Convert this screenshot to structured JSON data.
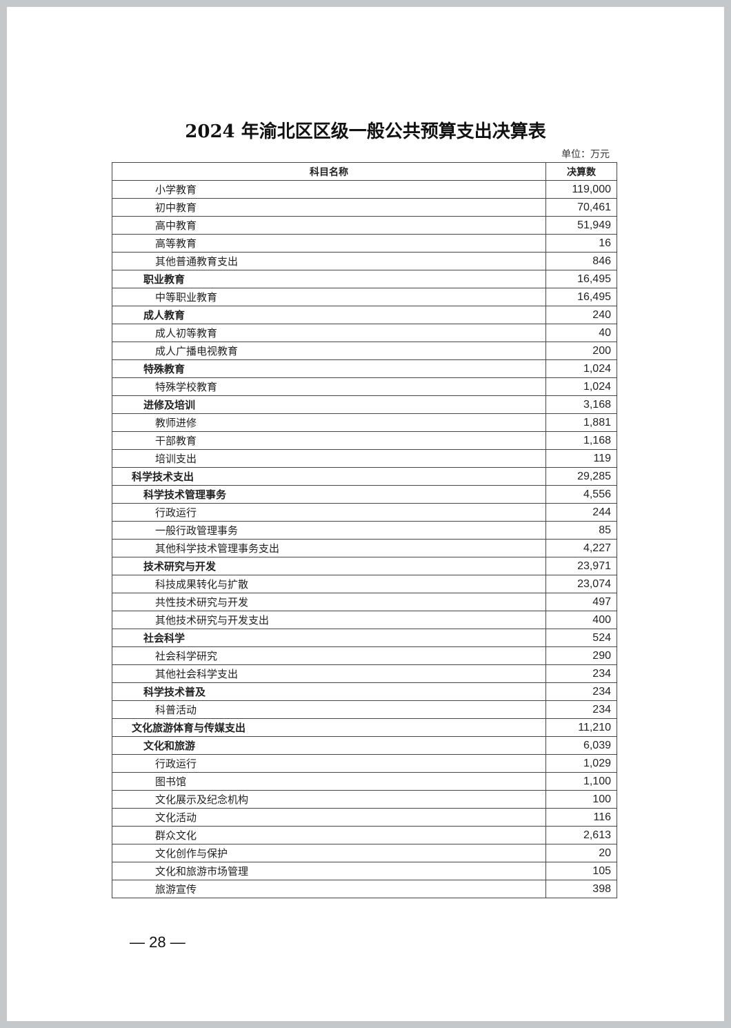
{
  "title": "2024 年渝北区区级一般公共预算支出决算表",
  "unit": "单位：万元",
  "table": {
    "headers": [
      "科目名称",
      "决算数"
    ],
    "rows": [
      {
        "name": "小学教育",
        "level": 3,
        "value": "119,000"
      },
      {
        "name": "初中教育",
        "level": 3,
        "value": "70,461"
      },
      {
        "name": "高中教育",
        "level": 3,
        "value": "51,949"
      },
      {
        "name": "高等教育",
        "level": 3,
        "value": "16"
      },
      {
        "name": "其他普通教育支出",
        "level": 3,
        "value": "846"
      },
      {
        "name": "职业教育",
        "level": 2,
        "value": "16,495"
      },
      {
        "name": "中等职业教育",
        "level": 3,
        "value": "16,495"
      },
      {
        "name": "成人教育",
        "level": 2,
        "value": "240"
      },
      {
        "name": "成人初等教育",
        "level": 3,
        "value": "40"
      },
      {
        "name": "成人广播电视教育",
        "level": 3,
        "value": "200"
      },
      {
        "name": "特殊教育",
        "level": 2,
        "value": "1,024"
      },
      {
        "name": "特殊学校教育",
        "level": 3,
        "value": "1,024"
      },
      {
        "name": "进修及培训",
        "level": 2,
        "value": "3,168"
      },
      {
        "name": "教师进修",
        "level": 3,
        "value": "1,881"
      },
      {
        "name": "干部教育",
        "level": 3,
        "value": "1,168"
      },
      {
        "name": "培训支出",
        "level": 3,
        "value": "119"
      },
      {
        "name": "科学技术支出",
        "level": 1,
        "value": "29,285"
      },
      {
        "name": "科学技术管理事务",
        "level": 2,
        "value": "4,556"
      },
      {
        "name": "行政运行",
        "level": 3,
        "value": "244"
      },
      {
        "name": "一般行政管理事务",
        "level": 3,
        "value": "85"
      },
      {
        "name": "其他科学技术管理事务支出",
        "level": 3,
        "value": "4,227"
      },
      {
        "name": "技术研究与开发",
        "level": 2,
        "value": "23,971"
      },
      {
        "name": "科技成果转化与扩散",
        "level": 3,
        "value": "23,074"
      },
      {
        "name": "共性技术研究与开发",
        "level": 3,
        "value": "497"
      },
      {
        "name": "其他技术研究与开发支出",
        "level": 3,
        "value": "400"
      },
      {
        "name": "社会科学",
        "level": 2,
        "value": "524"
      },
      {
        "name": "社会科学研究",
        "level": 3,
        "value": "290"
      },
      {
        "name": "其他社会科学支出",
        "level": 3,
        "value": "234"
      },
      {
        "name": "科学技术普及",
        "level": 2,
        "value": "234"
      },
      {
        "name": "科普活动",
        "level": 3,
        "value": "234"
      },
      {
        "name": "文化旅游体育与传媒支出",
        "level": 1,
        "value": "11,210"
      },
      {
        "name": "文化和旅游",
        "level": 2,
        "value": "6,039"
      },
      {
        "name": "行政运行",
        "level": 3,
        "value": "1,029"
      },
      {
        "name": "图书馆",
        "level": 3,
        "value": "1,100"
      },
      {
        "name": "文化展示及纪念机构",
        "level": 3,
        "value": "100"
      },
      {
        "name": "文化活动",
        "level": 3,
        "value": "116"
      },
      {
        "name": "群众文化",
        "level": 3,
        "value": "2,613"
      },
      {
        "name": "文化创作与保护",
        "level": 3,
        "value": "20"
      },
      {
        "name": "文化和旅游市场管理",
        "level": 3,
        "value": "105"
      },
      {
        "name": "旅游宣传",
        "level": 3,
        "value": "398"
      }
    ]
  },
  "page_number": "— 28 —"
}
